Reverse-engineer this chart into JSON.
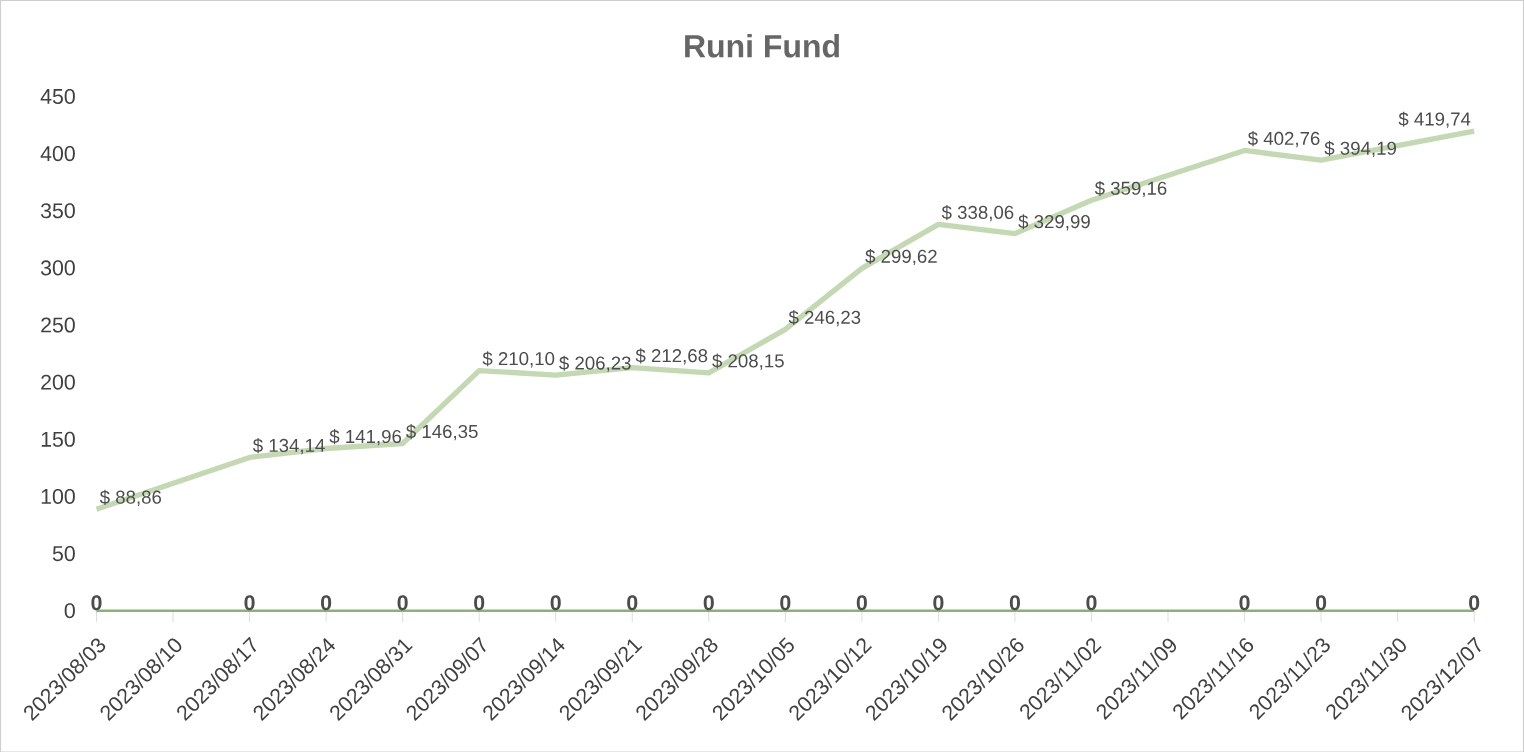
{
  "chart_data": {
    "type": "line",
    "title": "Runi Fund",
    "series": [
      {
        "color": "#c5d8b4",
        "x": [
          "2023-08-03",
          "2023-08-17",
          "2023-08-24",
          "2023-08-31",
          "2023-09-07",
          "2023-09-14",
          "2023-09-21",
          "2023-09-28",
          "2023-10-05",
          "2023-10-12",
          "2023-10-19",
          "2023-10-26",
          "2023-11-02",
          "2023-11-16",
          "2023-11-23",
          "2023-12-07"
        ],
        "values": [
          88.86,
          134.14,
          141.96,
          146.35,
          210.1,
          206.23,
          212.68,
          208.15,
          246.23,
          299.62,
          338.06,
          329.99,
          359.16,
          402.76,
          394.19,
          419.74
        ],
        "value_labels": [
          "$ 88,86",
          "$ 134,14",
          "$ 141,96",
          "$ 146,35",
          "$ 210,10",
          "$ 206,23",
          "$ 212,68",
          "$ 208,15",
          "$ 246,23",
          "$ 299,62",
          "$ 338,06",
          "$ 329,99",
          "$ 359,16",
          "$ 402,76",
          "$ 394,19",
          "$ 419,74"
        ]
      },
      {
        "color": "#8faf78",
        "x": [
          "2023-08-03",
          "2023-08-17",
          "2023-08-24",
          "2023-08-31",
          "2023-09-07",
          "2023-09-14",
          "2023-09-21",
          "2023-09-28",
          "2023-10-05",
          "2023-10-12",
          "2023-10-19",
          "2023-10-26",
          "2023-11-02",
          "2023-11-16",
          "2023-11-23",
          "2023-12-07"
        ],
        "values": [
          0,
          0,
          0,
          0,
          0,
          0,
          0,
          0,
          0,
          0,
          0,
          0,
          0,
          0,
          0,
          0
        ],
        "value_labels": [
          "0",
          "0",
          "0",
          "0",
          "0",
          "0",
          "0",
          "0",
          "0",
          "0",
          "0",
          "0",
          "0",
          "0",
          "0",
          "0"
        ]
      }
    ],
    "xlim": [
      "2023-08-03",
      "2023-12-07"
    ],
    "xticks": [
      {
        "value": "2023-08-03",
        "label": "2023/08/03"
      },
      {
        "value": "2023-08-10",
        "label": "2023/08/10"
      },
      {
        "value": "2023-08-17",
        "label": "2023/08/17"
      },
      {
        "value": "2023-08-24",
        "label": "2023/08/24"
      },
      {
        "value": "2023-08-31",
        "label": "2023/08/31"
      },
      {
        "value": "2023-09-07",
        "label": "2023/09/07"
      },
      {
        "value": "2023-09-14",
        "label": "2023/09/14"
      },
      {
        "value": "2023-09-21",
        "label": "2023/09/21"
      },
      {
        "value": "2023-09-28",
        "label": "2023/09/28"
      },
      {
        "value": "2023-10-05",
        "label": "2023/10/05"
      },
      {
        "value": "2023-10-12",
        "label": "2023/10/12"
      },
      {
        "value": "2023-10-19",
        "label": "2023/10/19"
      },
      {
        "value": "2023-10-26",
        "label": "2023/10/26"
      },
      {
        "value": "2023-11-02",
        "label": "2023/11/02"
      },
      {
        "value": "2023-11-09",
        "label": "2023/11/09"
      },
      {
        "value": "2023-11-16",
        "label": "2023/11/16"
      },
      {
        "value": "2023-11-23",
        "label": "2023/11/23"
      },
      {
        "value": "2023-11-30",
        "label": "2023/11/30"
      },
      {
        "value": "2023-12-07",
        "label": "2023/12/07"
      }
    ],
    "ylim": [
      0,
      450
    ],
    "yticks": [
      0,
      50,
      100,
      150,
      200,
      250,
      300,
      350,
      400,
      450
    ],
    "grid": false,
    "marker": "none",
    "line_style": "solid"
  }
}
